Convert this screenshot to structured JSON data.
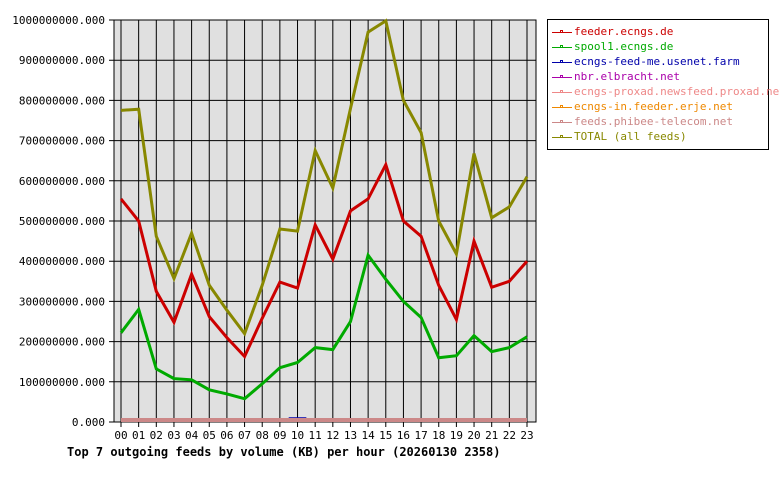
{
  "chart_data": {
    "type": "line",
    "title": "Top 7 outgoing feeds by volume (KB) per hour (20260130 2358)",
    "xlabel": "",
    "ylabel": "",
    "ylim": [
      0,
      1000000000
    ],
    "grid": true,
    "legend_position": "right",
    "y_ticks": [
      "0.000",
      "100000000.000",
      "200000000.000",
      "300000000.000",
      "400000000.000",
      "500000000.000",
      "600000000.000",
      "700000000.000",
      "800000000.000",
      "900000000.000",
      "1000000000.000"
    ],
    "categories": [
      "00",
      "01",
      "02",
      "03",
      "04",
      "05",
      "06",
      "07",
      "08",
      "09",
      "10",
      "11",
      "12",
      "13",
      "14",
      "15",
      "16",
      "17",
      "18",
      "19",
      "20",
      "21",
      "22",
      "23"
    ],
    "series": [
      {
        "name": "feeder.ecngs.de",
        "color": "#cc0000",
        "values": [
          555000000,
          500000000,
          325000000,
          248000000,
          368000000,
          262000000,
          210000000,
          163000000,
          258000000,
          348000000,
          333000000,
          490000000,
          405000000,
          525000000,
          555000000,
          640000000,
          500000000,
          462000000,
          340000000,
          255000000,
          450000000,
          335000000,
          350000000,
          400000000
        ]
      },
      {
        "name": "spool1.ecngs.de",
        "color": "#00aa00",
        "values": [
          222000000,
          280000000,
          132000000,
          108000000,
          105000000,
          80000000,
          70000000,
          58000000,
          95000000,
          135000000,
          148000000,
          185000000,
          180000000,
          250000000,
          415000000,
          355000000,
          300000000,
          260000000,
          160000000,
          165000000,
          215000000,
          175000000,
          185000000,
          212000000
        ]
      },
      {
        "name": "ecngs-feed-me.usenet.farm",
        "color": "#0000aa",
        "values": [
          0,
          0,
          0,
          0,
          0,
          0,
          0,
          0,
          0,
          0,
          5000000,
          0,
          0,
          0,
          0,
          0,
          0,
          0,
          0,
          0,
          0,
          0,
          0,
          0
        ]
      },
      {
        "name": "nbr.elbracht.net",
        "color": "#aa00aa",
        "values": [
          0,
          0,
          0,
          0,
          0,
          0,
          0,
          0,
          0,
          0,
          0,
          0,
          0,
          0,
          0,
          0,
          0,
          0,
          0,
          0,
          0,
          0,
          0,
          0
        ]
      },
      {
        "name": "ecngs-proxad.newsfeed.proxad.net",
        "color": "#ee8888",
        "values": [
          0,
          0,
          0,
          0,
          0,
          0,
          0,
          0,
          0,
          0,
          0,
          0,
          0,
          0,
          0,
          0,
          0,
          0,
          0,
          0,
          0,
          0,
          0,
          0
        ]
      },
      {
        "name": "ecngs-in.feeder.erje.net",
        "color": "#ee8800",
        "values": [
          0,
          0,
          0,
          0,
          0,
          0,
          0,
          0,
          0,
          0,
          0,
          0,
          0,
          0,
          0,
          0,
          0,
          0,
          0,
          0,
          0,
          0,
          0,
          0
        ]
      },
      {
        "name": "feeds.phibee-telecom.net",
        "color": "#cc8888",
        "values": [
          0,
          0,
          0,
          0,
          0,
          0,
          0,
          0,
          0,
          0,
          0,
          0,
          0,
          0,
          0,
          0,
          0,
          0,
          0,
          0,
          0,
          0,
          0,
          0
        ]
      },
      {
        "name": "TOTAL (all feeds)",
        "color": "#888800",
        "values": [
          775000000,
          778000000,
          462000000,
          357000000,
          470000000,
          340000000,
          278000000,
          220000000,
          340000000,
          480000000,
          475000000,
          675000000,
          582000000,
          780000000,
          970000000,
          998000000,
          800000000,
          720000000,
          500000000,
          418000000,
          668000000,
          508000000,
          535000000,
          610000000
        ]
      }
    ]
  },
  "colors": {
    "plot_background": "#e0e0e0",
    "grid": "#000000"
  }
}
